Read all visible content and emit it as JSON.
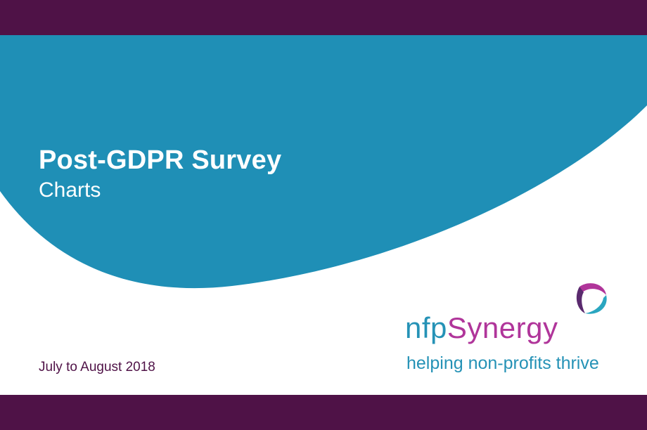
{
  "colors": {
    "primary_bar": "#4f1247",
    "wave": "#1f8fb6",
    "brand_blue": "#2592b6",
    "brand_magenta": "#b0359a"
  },
  "title": {
    "main": "Post-GDPR Survey",
    "sub": "Charts"
  },
  "date_range": "July to August 2018",
  "logo": {
    "name_part_1": "nfp",
    "name_part_2": "Synergy",
    "tagline": "helping non-profits thrive",
    "icon": "nfpsynergy-triangle-icon"
  }
}
